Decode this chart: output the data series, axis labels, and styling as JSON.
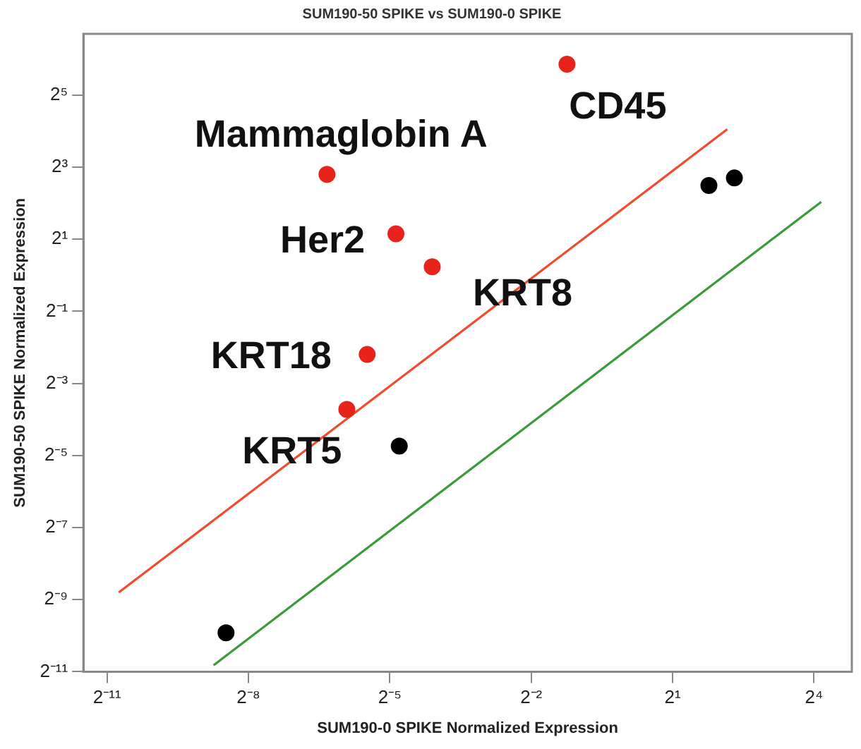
{
  "chart_data": {
    "type": "scatter",
    "title": "SUM190-50 SPIKE vs SUM190-0 SPIKE",
    "xlabel": "SUM190-0 SPIKE Normalized Expression",
    "ylabel": "SUM190-50 SPIKE Normalized Expression",
    "log": "xy",
    "grid": false,
    "legend": false,
    "marker": "circle",
    "xlim": [
      0.000345,
      27.9
    ],
    "ylim": [
      0.000488,
      104
    ],
    "xticks": [
      {
        "value": 0.00048828125,
        "label": "2⁻¹¹"
      },
      {
        "value": 0.00390625,
        "label": "2⁻⁸"
      },
      {
        "value": 0.03125,
        "label": "2⁻⁵"
      },
      {
        "value": 0.25,
        "label": "2⁻²"
      },
      {
        "value": 2,
        "label": "2¹"
      },
      {
        "value": 16,
        "label": "2⁴"
      }
    ],
    "yticks": [
      {
        "value": 0.00048828125,
        "label": "2⁻¹¹"
      },
      {
        "value": 0.001953125,
        "label": "2⁻⁹"
      },
      {
        "value": 0.0078125,
        "label": "2⁻⁷"
      },
      {
        "value": 0.03125,
        "label": "2⁻⁵"
      },
      {
        "value": 0.125,
        "label": "2⁻³"
      },
      {
        "value": 0.5,
        "label": "2⁻¹"
      },
      {
        "value": 2,
        "label": "2¹"
      },
      {
        "value": 8,
        "label": "2³"
      },
      {
        "value": 32,
        "label": "2⁵"
      }
    ],
    "series": [
      {
        "color": "#e8231c",
        "x": [
          0.423,
          0.0124,
          0.0342,
          0.0583,
          0.0224,
          0.0166
        ],
        "values": [
          58.1,
          6.96,
          2.22,
          1.18,
          0.218,
          0.0759
        ]
      },
      {
        "color": "#000000",
        "x": [
          0.0359,
          0.00281,
          3.41,
          4.96
        ],
        "values": [
          0.0374,
          0.00103,
          5.62,
          6.5
        ]
      },
      {
        "type": "line",
        "color": "#f04a30",
        "x": [
          0.00058,
          4.47
        ],
        "values": [
          0.00224,
          16.6
        ],
        "marker": "none",
        "line_style": "solid"
      },
      {
        "type": "line",
        "color": "#3a9a3a",
        "x": [
          0.00234,
          17.8
        ],
        "values": [
          0.000553,
          4.11
        ],
        "marker": "none",
        "line_style": "solid"
      }
    ],
    "annotations": [
      {
        "text": "CD45",
        "x": 0.423,
        "y": 58.1
      },
      {
        "text": "Mammaglobin A",
        "x": 0.0124,
        "y": 6.96
      },
      {
        "text": "Her2",
        "x": 0.0342,
        "y": 2.22
      },
      {
        "text": "KRT8",
        "x": 0.0583,
        "y": 1.18
      },
      {
        "text": "KRT18",
        "x": 0.0224,
        "y": 0.218
      },
      {
        "text": "KRT5",
        "x": 0.0359,
        "y": 0.0374
      }
    ]
  }
}
